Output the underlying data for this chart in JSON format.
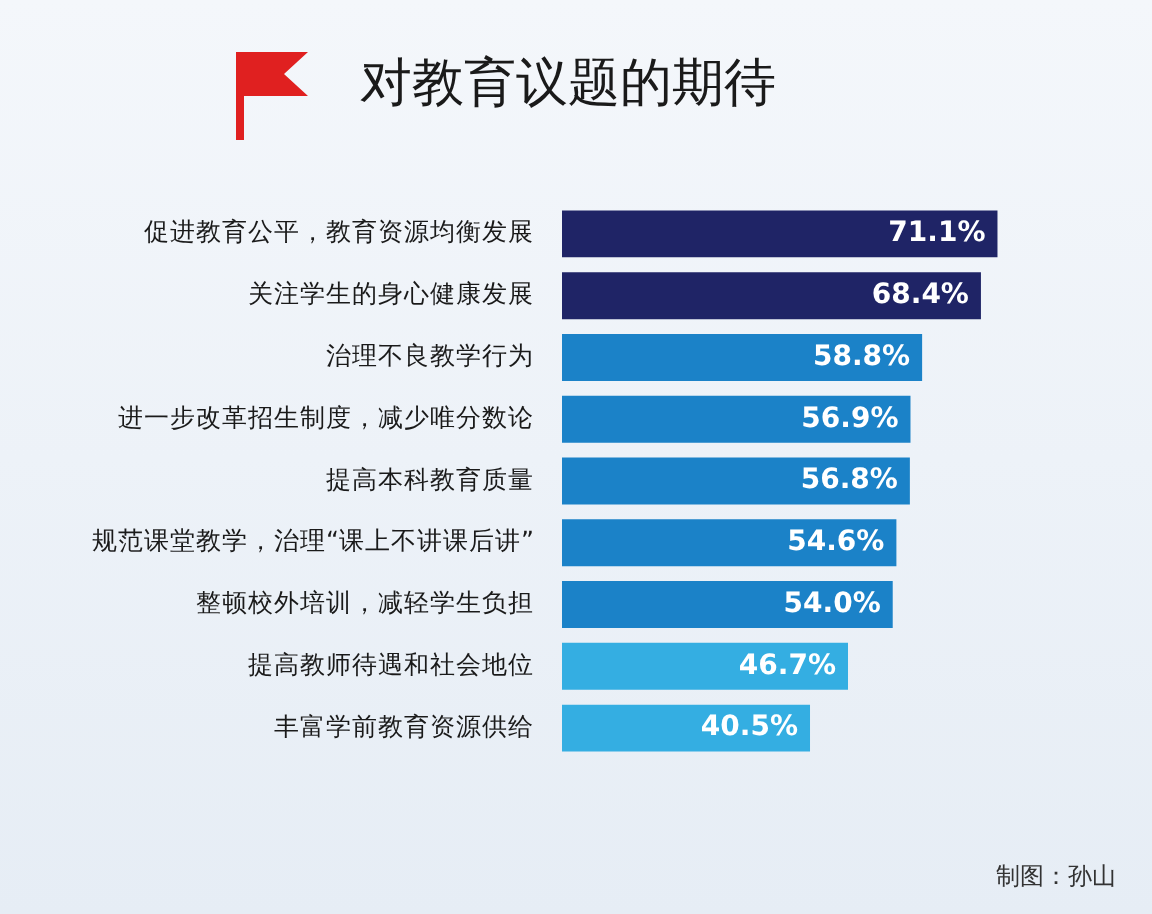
{
  "chart_data": {
    "type": "bar",
    "orientation": "horizontal",
    "title": "对教育议题的期待",
    "categories": [
      "促进教育公平，教育资源均衡发展",
      "关注学生的身心健康发展",
      "治理不良教学行为",
      "进一步改革招生制度，减少唯分数论",
      "提高本科教育质量",
      "规范课堂教学，治理“课上不讲课后讲”",
      "整顿校外培训，减轻学生负担",
      "提高教师待遇和社会地位",
      "丰富学前教育资源供给"
    ],
    "values": [
      71.1,
      68.4,
      58.8,
      56.9,
      56.8,
      54.6,
      54.0,
      46.7,
      40.5
    ],
    "value_labels": [
      "71.1%",
      "68.4%",
      "58.8%",
      "56.9%",
      "56.8%",
      "54.6%",
      "54.0%",
      "46.7%",
      "40.5%"
    ],
    "colors": [
      "#1f2466",
      "#1f2466",
      "#1b82c8",
      "#1b82c8",
      "#1b82c8",
      "#1b82c8",
      "#1b82c8",
      "#34aee2",
      "#34aee2"
    ],
    "tick_labels": "y",
    "legend": false,
    "annotations": [
      "制图：孙山"
    ]
  }
}
